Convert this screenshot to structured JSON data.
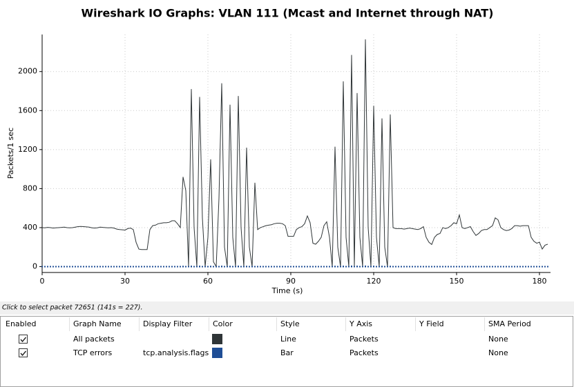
{
  "chart_data": {
    "type": "line",
    "title": "Wireshark IO Graphs: VLAN 111 (Mcast and Internet through NAT)",
    "x_label": "Time (s)",
    "y_label": "Packets/1 sec",
    "x": [
      0,
      1,
      2,
      3,
      4,
      5,
      6,
      7,
      8,
      9,
      10,
      11,
      12,
      13,
      14,
      15,
      16,
      17,
      18,
      19,
      20,
      21,
      22,
      23,
      24,
      25,
      26,
      27,
      28,
      29,
      30,
      31,
      32,
      33,
      34,
      35,
      36,
      37,
      38,
      39,
      40,
      41,
      42,
      43,
      44,
      45,
      46,
      47,
      48,
      49,
      50,
      51,
      52,
      53,
      54,
      55,
      56,
      57,
      58,
      59,
      60,
      61,
      62,
      63,
      64,
      65,
      66,
      67,
      68,
      69,
      70,
      71,
      72,
      73,
      74,
      75,
      76,
      77,
      78,
      79,
      80,
      81,
      82,
      83,
      84,
      85,
      86,
      87,
      88,
      89,
      90,
      91,
      92,
      93,
      94,
      95,
      96,
      97,
      98,
      99,
      100,
      101,
      102,
      103,
      104,
      105,
      106,
      107,
      108,
      109,
      110,
      111,
      112,
      113,
      114,
      115,
      116,
      117,
      118,
      119,
      120,
      121,
      122,
      123,
      124,
      125,
      126,
      127,
      128,
      129,
      130,
      131,
      132,
      133,
      134,
      135,
      136,
      137,
      138,
      139,
      140,
      141,
      142,
      143,
      144,
      145,
      146,
      147,
      148,
      149,
      150,
      151,
      152,
      153,
      154,
      155,
      156,
      157,
      158,
      159,
      160,
      161,
      162,
      163,
      164,
      165,
      166,
      167,
      168,
      169,
      170,
      171,
      172,
      173,
      174,
      175,
      176,
      177,
      178,
      179,
      180,
      181,
      182,
      183
    ],
    "series": [
      {
        "name": "All packets",
        "color": "#2f3537",
        "type": "line",
        "enabled": true,
        "style": "Line",
        "y_axis": "Packets",
        "sma_period": "None",
        "values": [
          400,
          398,
          402,
          400,
          395,
          398,
          400,
          402,
          405,
          400,
          398,
          400,
          405,
          410,
          412,
          410,
          408,
          405,
          398,
          395,
          398,
          405,
          402,
          400,
          398,
          400,
          395,
          385,
          380,
          378,
          375,
          390,
          395,
          380,
          250,
          180,
          175,
          175,
          175,
          380,
          420,
          425,
          440,
          445,
          450,
          450,
          455,
          470,
          470,
          440,
          400,
          920,
          780,
          0,
          1820,
          400,
          0,
          1740,
          500,
          0,
          300,
          1100,
          50,
          0,
          700,
          1880,
          200,
          0,
          1660,
          300,
          0,
          1750,
          400,
          0,
          1220,
          200,
          0,
          860,
          380,
          400,
          410,
          420,
          425,
          430,
          440,
          445,
          445,
          440,
          420,
          310,
          310,
          310,
          380,
          400,
          410,
          440,
          520,
          450,
          240,
          230,
          260,
          300,
          420,
          460,
          300,
          0,
          1230,
          200,
          0,
          1900,
          300,
          0,
          2170,
          0,
          1780,
          300,
          0,
          2330,
          400,
          0,
          1650,
          300,
          0,
          1520,
          200,
          0,
          1560,
          400,
          390,
          390,
          390,
          385,
          390,
          395,
          390,
          385,
          380,
          390,
          410,
          300,
          250,
          227,
          300,
          330,
          340,
          400,
          390,
          400,
          420,
          450,
          440,
          530,
          400,
          390,
          400,
          410,
          360,
          320,
          340,
          370,
          380,
          380,
          400,
          420,
          500,
          480,
          400,
          380,
          370,
          375,
          390,
          420,
          420,
          415,
          420,
          420,
          420,
          300,
          260,
          240,
          250,
          180,
          220,
          230
        ]
      },
      {
        "name": "TCP errors",
        "color": "#1f4e96",
        "type": "bar",
        "enabled": true,
        "display_filter": "tcp.analysis.flags",
        "style": "Bar",
        "y_axis": "Packets",
        "sma_period": "None",
        "values": [
          0,
          0,
          0,
          0,
          0,
          0,
          0,
          0,
          0,
          0,
          0,
          0,
          0,
          0,
          0,
          0,
          0,
          0,
          0,
          0,
          0,
          0,
          0,
          0,
          0,
          0,
          0,
          0,
          0,
          0,
          0,
          0,
          0,
          0,
          0,
          0,
          0,
          0,
          0,
          0,
          0,
          0,
          0,
          0,
          0,
          0,
          0,
          0,
          0,
          0,
          0,
          2,
          0,
          0,
          3,
          0,
          0,
          3,
          0,
          0,
          0,
          2,
          0,
          0,
          0,
          3,
          0,
          0,
          2,
          0,
          0,
          3,
          0,
          0,
          2,
          0,
          0,
          0,
          0,
          0,
          0,
          0,
          0,
          0,
          0,
          0,
          0,
          0,
          0,
          0,
          0,
          0,
          0,
          0,
          0,
          0,
          0,
          0,
          0,
          0,
          0,
          0,
          0,
          0,
          0,
          0,
          2,
          0,
          0,
          3,
          0,
          0,
          4,
          0,
          3,
          0,
          0,
          4,
          0,
          0,
          3,
          0,
          0,
          2,
          0,
          0,
          2,
          0,
          0,
          0,
          0,
          0,
          0,
          0,
          0,
          0,
          0,
          0,
          0,
          0,
          0,
          0,
          0,
          0,
          0,
          0,
          0,
          0,
          0,
          0,
          0,
          0,
          0,
          0,
          0,
          0,
          0,
          0,
          0,
          0,
          0,
          0,
          0,
          0,
          0,
          0,
          0,
          0,
          0,
          0,
          0,
          0,
          0,
          0,
          0,
          0,
          0,
          0,
          0,
          0,
          0,
          0,
          0,
          0
        ]
      }
    ],
    "xlim": [
      0,
      184
    ],
    "xticks": [
      0,
      30,
      60,
      90,
      120,
      150,
      180
    ],
    "ylim": [
      -60,
      2380
    ],
    "yticks": [
      0,
      400,
      800,
      1200,
      1600,
      2000
    ],
    "grid": true
  },
  "status": "Click to select packet 72651 (141s = 227).",
  "table": {
    "headers": [
      "Enabled",
      "Graph Name",
      "Display Filter",
      "Color",
      "Style",
      "Y Axis",
      "Y Field",
      "SMA Period"
    ]
  }
}
